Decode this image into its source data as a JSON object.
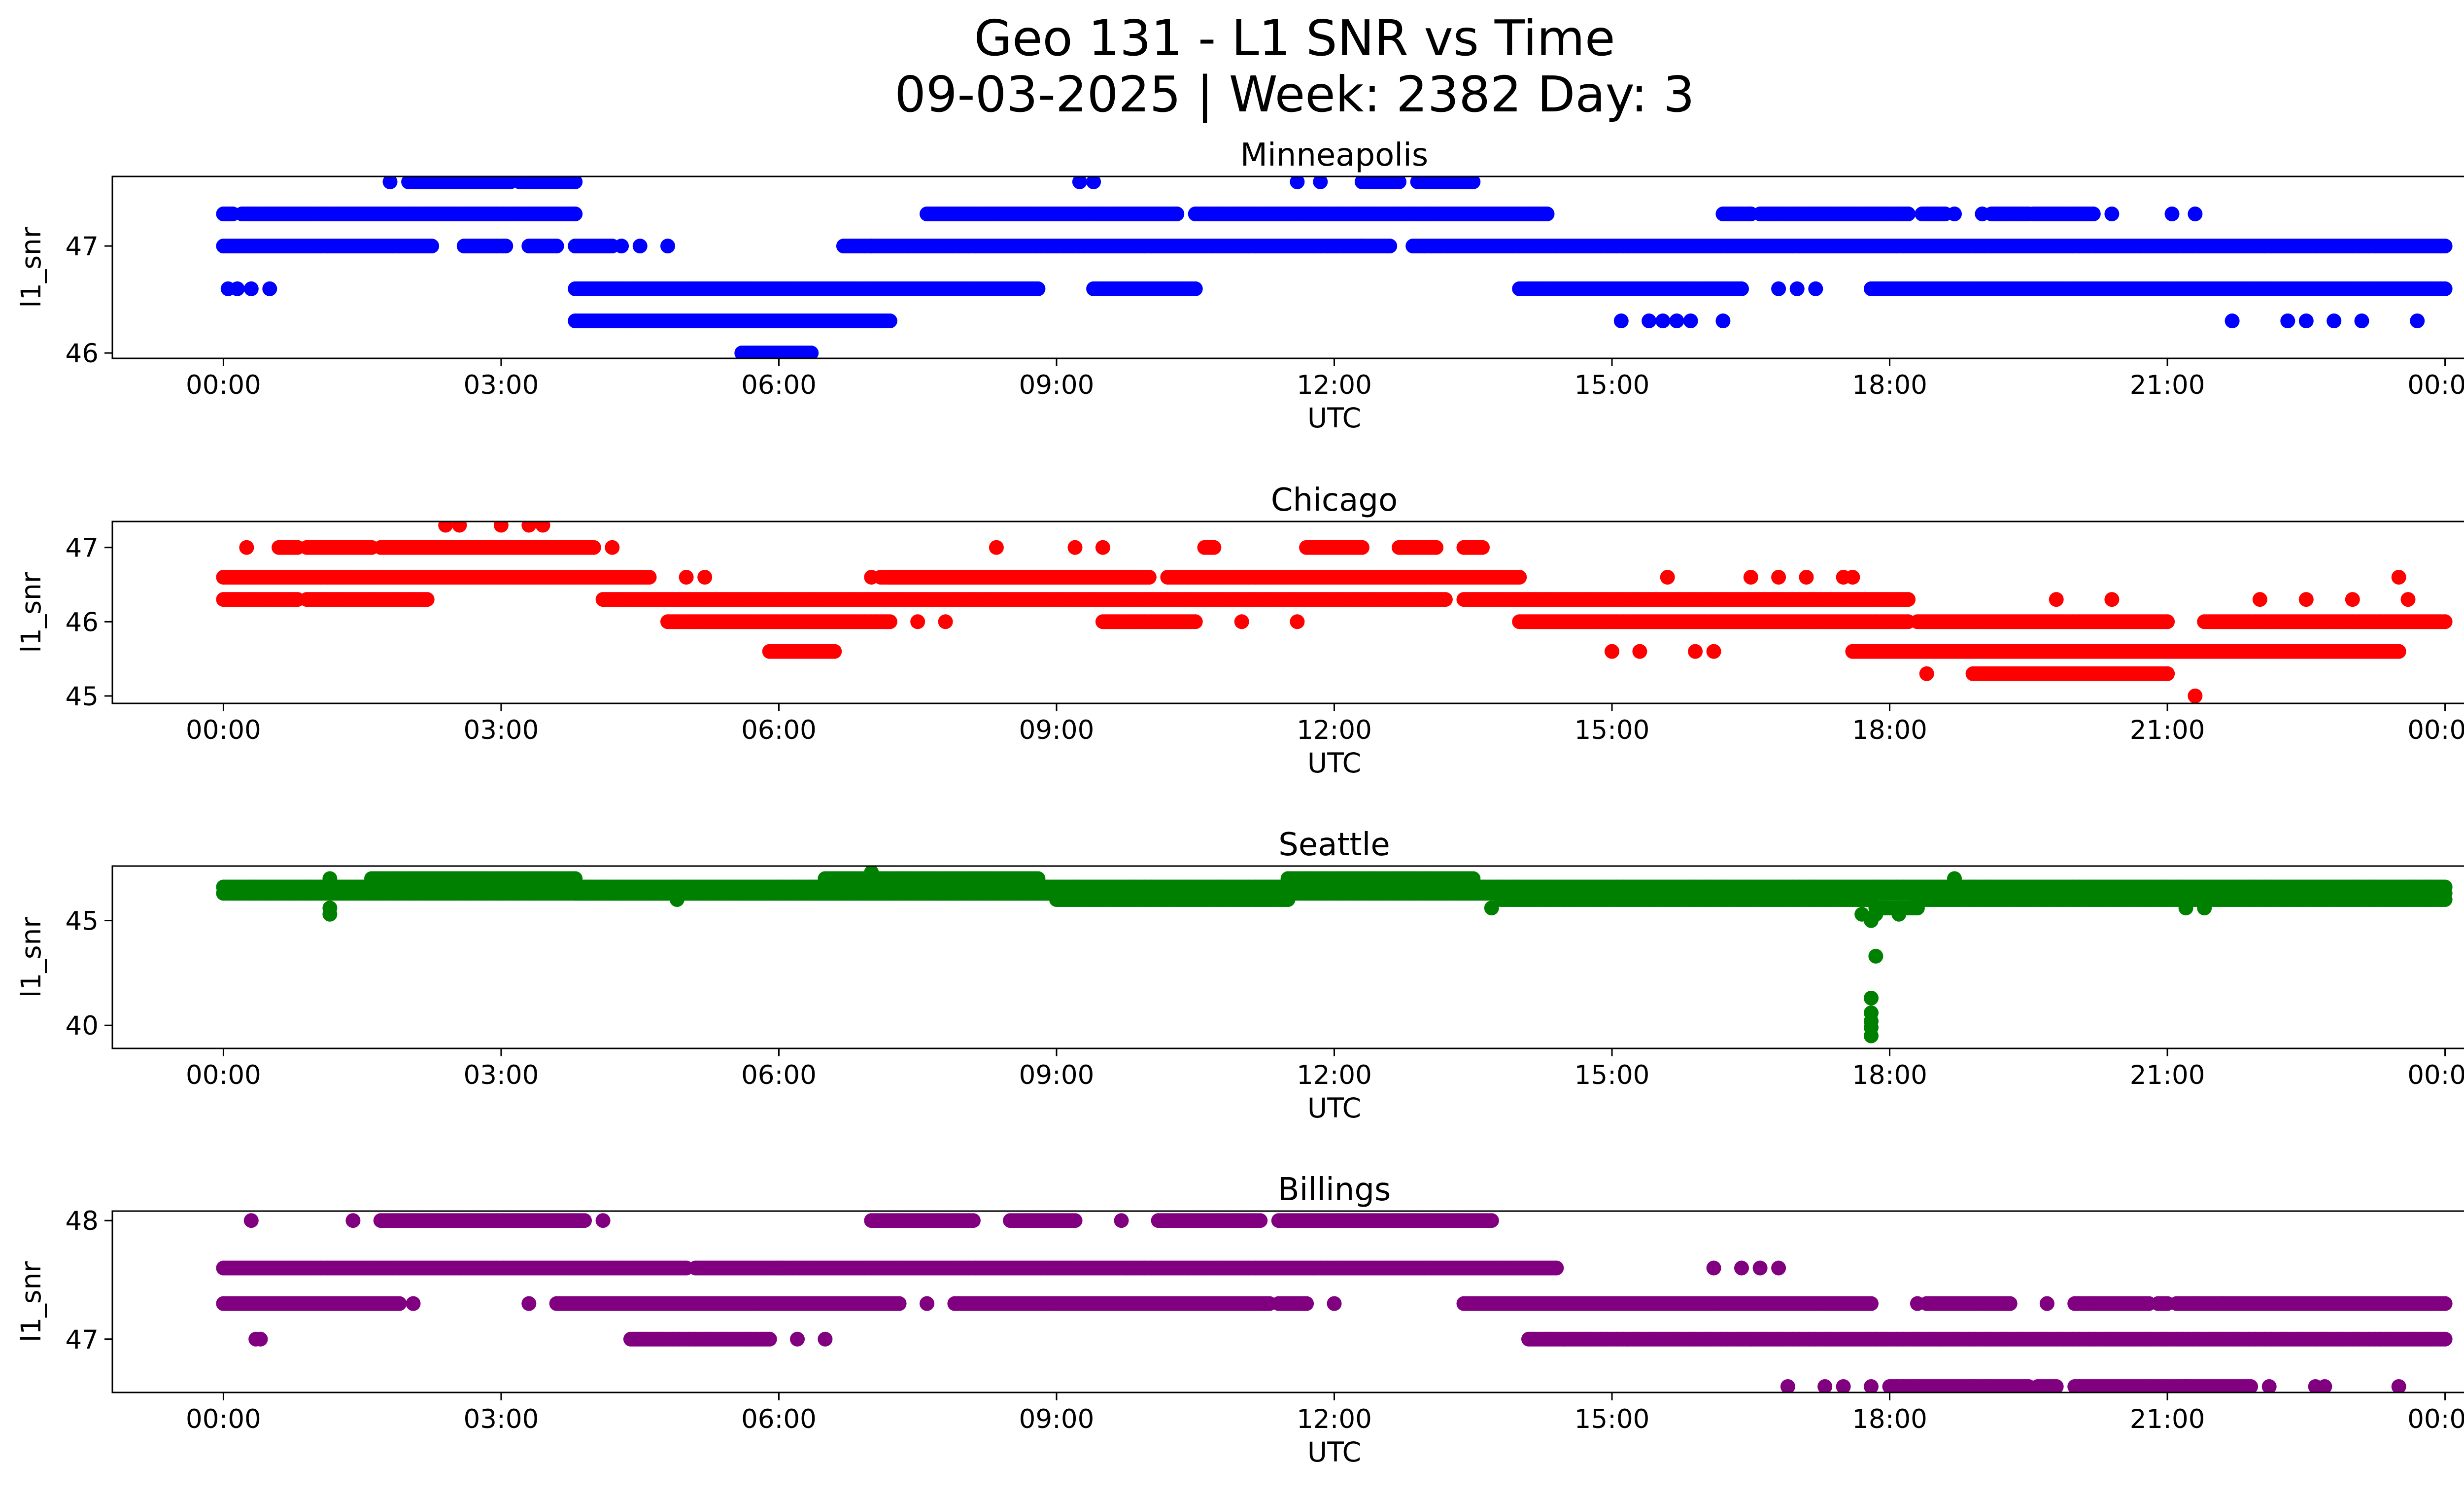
{
  "figure": {
    "title_line1": "Geo 131 - L1 SNR vs Time",
    "title_line2": "09-03-2025 | Week: 2382 Day: 3"
  },
  "chart_data": [
    {
      "type": "scatter",
      "title": "Minneapolis",
      "xlabel": "UTC",
      "ylabel": "l1_snr",
      "color": "#0000ff",
      "x_unit": "hours",
      "xlim": [
        -1.2,
        25.2
      ],
      "ylim": [
        45.95,
        47.65
      ],
      "xticks": [
        0,
        3,
        6,
        9,
        12,
        15,
        18,
        21,
        24
      ],
      "xtick_labels": [
        "00:00",
        "03:00",
        "06:00",
        "09:00",
        "12:00",
        "15:00",
        "18:00",
        "21:00",
        "00:00"
      ],
      "yticks": [
        46,
        47
      ],
      "ytick_labels": [
        "46",
        "47"
      ],
      "series": [
        {
          "name": "dense 47.0",
          "y": 47.0,
          "ranges": [
            [
              0,
              2.25
            ],
            [
              2.6,
              3.05
            ],
            [
              3.3,
              3.6
            ],
            [
              3.8,
              4.2
            ],
            [
              6.7,
              7.0
            ],
            [
              7.0,
              12.6
            ],
            [
              12.85,
              24.0
            ]
          ]
        },
        {
          "name": "dense 47.3",
          "y": 47.3,
          "ranges": [
            [
              0,
              0.1
            ],
            [
              0.2,
              3.8
            ],
            [
              7.6,
              10.3
            ],
            [
              10.5,
              14.3
            ],
            [
              16.2,
              16.5
            ],
            [
              16.6,
              18.2
            ],
            [
              18.35,
              18.6
            ],
            [
              19.1,
              19.5
            ],
            [
              19.55,
              20.2
            ]
          ]
        },
        {
          "name": "dense 47.6",
          "y": 47.6,
          "ranges": [
            [
              2.0,
              3.1
            ],
            [
              3.2,
              3.8
            ],
            [
              12.3,
              12.7
            ],
            [
              12.9,
              13.5
            ]
          ]
        },
        {
          "name": "dense 46.6",
          "y": 46.6,
          "ranges": [
            [
              3.8,
              8.8
            ],
            [
              9.4,
              10.5
            ],
            [
              14.0,
              16.4
            ],
            [
              17.8,
              24.0
            ]
          ]
        },
        {
          "name": "dense 46.3",
          "y": 46.3,
          "ranges": [
            [
              3.8,
              7.2
            ]
          ]
        },
        {
          "name": "dense 46.0",
          "y": 46.0,
          "ranges": [
            [
              5.6,
              6.35
            ]
          ]
        },
        {
          "name": "scattered",
          "points": [
            [
              0.05,
              46.6
            ],
            [
              0.15,
              46.6
            ],
            [
              0.3,
              46.6
            ],
            [
              0.5,
              46.6
            ],
            [
              1.8,
              47.6
            ],
            [
              4.3,
              47.0
            ],
            [
              4.5,
              47.0
            ],
            [
              4.8,
              47.0
            ],
            [
              9.25,
              47.6
            ],
            [
              9.4,
              47.6
            ],
            [
              11.6,
              47.6
            ],
            [
              11.85,
              47.6
            ],
            [
              12.3,
              47.0
            ],
            [
              14.3,
              46.6
            ],
            [
              16.5,
              47.3
            ],
            [
              16.8,
              46.6
            ],
            [
              17.0,
              46.6
            ],
            [
              17.2,
              46.6
            ],
            [
              18.2,
              47.3
            ],
            [
              18.4,
              47.3
            ],
            [
              18.7,
              47.3
            ],
            [
              19.0,
              47.3
            ],
            [
              20.4,
              47.3
            ],
            [
              21.05,
              47.3
            ],
            [
              21.3,
              47.3
            ],
            [
              15.1,
              46.3
            ],
            [
              15.4,
              46.3
            ],
            [
              15.55,
              46.3
            ],
            [
              15.7,
              46.3
            ],
            [
              15.85,
              46.3
            ],
            [
              16.2,
              46.3
            ],
            [
              21.7,
              46.3
            ],
            [
              22.3,
              46.3
            ],
            [
              22.5,
              46.3
            ],
            [
              22.8,
              46.3
            ],
            [
              23.1,
              46.3
            ],
            [
              23.7,
              46.3
            ]
          ]
        }
      ]
    },
    {
      "type": "scatter",
      "title": "Chicago",
      "xlabel": "UTC",
      "ylabel": "l1_snr",
      "color": "#ff0000",
      "x_unit": "hours",
      "xlim": [
        -1.2,
        25.2
      ],
      "ylim": [
        44.9,
        47.35
      ],
      "xticks": [
        0,
        3,
        6,
        9,
        12,
        15,
        18,
        21,
        24
      ],
      "xtick_labels": [
        "00:00",
        "03:00",
        "06:00",
        "09:00",
        "12:00",
        "15:00",
        "18:00",
        "21:00",
        "00:00"
      ],
      "yticks": [
        45,
        46,
        47
      ],
      "ytick_labels": [
        "45",
        "46",
        "47"
      ],
      "series": [
        {
          "name": "dense 47.0",
          "y": 47.0,
          "ranges": [
            [
              0.6,
              0.8
            ],
            [
              0.9,
              1.6
            ],
            [
              1.7,
              4.0
            ],
            [
              10.6,
              10.7
            ],
            [
              11.7,
              12.3
            ],
            [
              12.7,
              13.1
            ],
            [
              13.4,
              13.6
            ]
          ]
        },
        {
          "name": "dense 46.6",
          "y": 46.6,
          "ranges": [
            [
              0,
              4.6
            ],
            [
              7.1,
              10.0
            ],
            [
              10.2,
              14.0
            ],
            [
              7.2,
              10.0
            ]
          ]
        },
        {
          "name": "dense 46.3",
          "y": 46.3,
          "ranges": [
            [
              0,
              0.8
            ],
            [
              0.9,
              2.2
            ],
            [
              4.1,
              13.2
            ],
            [
              13.4,
              18.2
            ]
          ]
        },
        {
          "name": "dense 46.0",
          "y": 46.0,
          "ranges": [
            [
              4.8,
              7.2
            ],
            [
              9.5,
              10.5
            ],
            [
              14.0,
              18.2
            ],
            [
              18.3,
              21.0
            ],
            [
              21.4,
              24.0
            ]
          ]
        },
        {
          "name": "dense 45.6",
          "y": 45.6,
          "ranges": [
            [
              5.9,
              6.6
            ],
            [
              17.6,
              23.5
            ]
          ]
        },
        {
          "name": "dense 45.3",
          "y": 45.3,
          "ranges": [
            [
              18.9,
              21.0
            ]
          ]
        },
        {
          "name": "scattered",
          "points": [
            [
              0.25,
              47.0
            ],
            [
              2.4,
              47.3
            ],
            [
              2.55,
              47.3
            ],
            [
              3.0,
              47.3
            ],
            [
              3.3,
              47.3
            ],
            [
              3.45,
              47.3
            ],
            [
              4.2,
              47.0
            ],
            [
              5.0,
              46.6
            ],
            [
              5.2,
              46.6
            ],
            [
              7.0,
              46.6
            ],
            [
              7.5,
              46.0
            ],
            [
              7.8,
              46.0
            ],
            [
              8.35,
              47.0
            ],
            [
              9.2,
              47.0
            ],
            [
              9.5,
              47.0
            ],
            [
              11.0,
              46.0
            ],
            [
              11.6,
              46.0
            ],
            [
              15.0,
              45.6
            ],
            [
              15.3,
              45.6
            ],
            [
              15.6,
              46.6
            ],
            [
              15.9,
              45.6
            ],
            [
              16.1,
              45.6
            ],
            [
              16.5,
              46.6
            ],
            [
              16.8,
              46.6
            ],
            [
              17.1,
              46.6
            ],
            [
              17.5,
              46.6
            ],
            [
              17.6,
              46.6
            ],
            [
              18.4,
              45.3
            ],
            [
              19.8,
              46.3
            ],
            [
              20.4,
              46.3
            ],
            [
              21.0,
              45.3
            ],
            [
              21.3,
              45.0
            ],
            [
              22.0,
              46.3
            ],
            [
              22.5,
              46.3
            ],
            [
              23.0,
              46.3
            ],
            [
              23.5,
              46.6
            ],
            [
              23.6,
              46.3
            ]
          ]
        }
      ]
    },
    {
      "type": "scatter",
      "title": "Seattle",
      "xlabel": "UTC",
      "ylabel": "l1_snr",
      "color": "#008000",
      "x_unit": "hours",
      "xlim": [
        -1.2,
        25.2
      ],
      "ylim": [
        38.9,
        47.6
      ],
      "xticks": [
        0,
        3,
        6,
        9,
        12,
        15,
        18,
        21,
        24
      ],
      "xtick_labels": [
        "00:00",
        "03:00",
        "06:00",
        "09:00",
        "12:00",
        "15:00",
        "18:00",
        "21:00",
        "00:00"
      ],
      "yticks": [
        40,
        45
      ],
      "ytick_labels": [
        "40",
        "45"
      ],
      "series": [
        {
          "name": "dense 46.6",
          "y": 46.6,
          "ranges": [
            [
              0,
              24.0
            ]
          ]
        },
        {
          "name": "dense 46.3",
          "y": 46.3,
          "ranges": [
            [
              0,
              9.0
            ],
            [
              3.8,
              13.8
            ],
            [
              17.3,
              24.0
            ]
          ]
        },
        {
          "name": "dense 47.0",
          "y": 47.0,
          "ranges": [
            [
              1.6,
              3.8
            ],
            [
              6.5,
              8.8
            ],
            [
              11.5,
              13.5
            ]
          ]
        },
        {
          "name": "dense 46.0",
          "y": 46.0,
          "ranges": [
            [
              9.0,
              11.5
            ],
            [
              13.8,
              17.8
            ],
            [
              18.3,
              24.0
            ]
          ]
        },
        {
          "name": "dense 45.6",
          "y": 45.6,
          "ranges": [
            [
              17.85,
              18.3
            ]
          ]
        },
        {
          "name": "scattered",
          "points": [
            [
              1.15,
              45.6
            ],
            [
              1.15,
              45.3
            ],
            [
              1.15,
              47.0
            ],
            [
              4.9,
              46.0
            ],
            [
              7.0,
              47.3
            ],
            [
              13.7,
              45.6
            ],
            [
              17.7,
              45.3
            ],
            [
              17.8,
              45.0
            ],
            [
              17.85,
              45.3
            ],
            [
              17.95,
              45.6
            ],
            [
              18.1,
              45.3
            ],
            [
              18.7,
              47.0
            ],
            [
              21.2,
              45.6
            ],
            [
              21.4,
              45.6
            ],
            [
              17.85,
              43.3
            ],
            [
              17.8,
              41.3
            ],
            [
              17.8,
              40.6
            ],
            [
              17.8,
              40.2
            ],
            [
              17.8,
              39.9
            ],
            [
              17.8,
              39.5
            ]
          ]
        }
      ]
    },
    {
      "type": "scatter",
      "title": "Billings",
      "xlabel": "UTC",
      "ylabel": "l1_snr",
      "color": "#800080",
      "x_unit": "hours",
      "xlim": [
        -1.2,
        25.2
      ],
      "ylim": [
        46.55,
        48.08
      ],
      "xticks": [
        0,
        3,
        6,
        9,
        12,
        15,
        18,
        21,
        24
      ],
      "xtick_labels": [
        "00:00",
        "03:00",
        "06:00",
        "09:00",
        "12:00",
        "15:00",
        "18:00",
        "21:00",
        "00:00"
      ],
      "yticks": [
        47,
        48
      ],
      "ytick_labels": [
        "47",
        "48"
      ],
      "series": [
        {
          "name": "dense 48.0",
          "y": 48.0,
          "ranges": [
            [
              1.7,
              3.9
            ],
            [
              7.0,
              8.1
            ],
            [
              8.5,
              9.2
            ],
            [
              10.1,
              11.2
            ],
            [
              11.4,
              13.7
            ]
          ]
        },
        {
          "name": "dense 47.6",
          "y": 47.6,
          "ranges": [
            [
              0,
              5.0
            ],
            [
              5.1,
              6.0
            ],
            [
              6.0,
              14.4
            ]
          ]
        },
        {
          "name": "dense 47.3",
          "y": 47.3,
          "ranges": [
            [
              0,
              1.9
            ],
            [
              3.6,
              7.3
            ],
            [
              7.9,
              11.3
            ],
            [
              11.4,
              11.7
            ],
            [
              13.4,
              17.8
            ],
            [
              18.4,
              19.3
            ],
            [
              20.0,
              20.8
            ],
            [
              20.9,
              21.0
            ],
            [
              21.1,
              24.0
            ]
          ]
        },
        {
          "name": "dense 47.0",
          "y": 47.0,
          "ranges": [
            [
              4.4,
              5.9
            ],
            [
              14.1,
              24.0
            ]
          ]
        },
        {
          "name": "dense 46.6",
          "y": 46.6,
          "ranges": [
            [
              18.0,
              19.5
            ],
            [
              19.6,
              19.8
            ],
            [
              20.0,
              21.9
            ]
          ]
        },
        {
          "name": "scattered",
          "points": [
            [
              0.3,
              48.0
            ],
            [
              1.4,
              48.0
            ],
            [
              4.1,
              48.0
            ],
            [
              9.7,
              48.0
            ],
            [
              3.3,
              47.3
            ],
            [
              2.05,
              47.3
            ],
            [
              7.6,
              47.3
            ],
            [
              12.0,
              47.3
            ],
            [
              0.35,
              47.0
            ],
            [
              0.4,
              47.0
            ],
            [
              6.2,
              47.0
            ],
            [
              6.5,
              47.0
            ],
            [
              16.1,
              47.6
            ],
            [
              16.4,
              47.6
            ],
            [
              16.6,
              47.6
            ],
            [
              16.8,
              47.6
            ],
            [
              18.3,
              47.3
            ],
            [
              19.7,
              47.3
            ],
            [
              20.2,
              47.3
            ],
            [
              21.3,
              47.3
            ],
            [
              21.6,
              47.3
            ],
            [
              16.9,
              46.6
            ],
            [
              17.3,
              46.6
            ],
            [
              17.5,
              46.6
            ],
            [
              17.8,
              46.6
            ],
            [
              21.2,
              46.6
            ],
            [
              22.1,
              46.6
            ],
            [
              22.6,
              46.6
            ],
            [
              22.7,
              46.6
            ],
            [
              23.5,
              46.6
            ]
          ]
        }
      ]
    }
  ]
}
